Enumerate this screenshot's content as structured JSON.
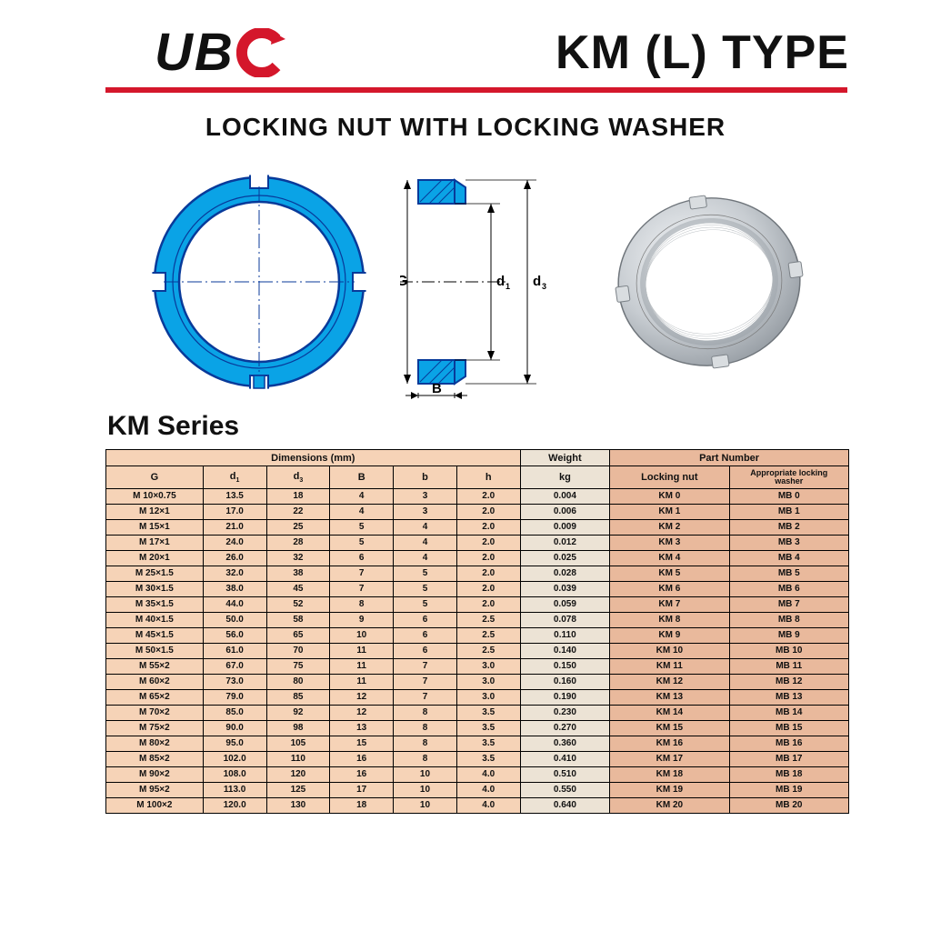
{
  "header": {
    "logo_text_1": "UB",
    "title": "KM (L) TYPE"
  },
  "subtitle": "LOCKING NUT WITH LOCKING WASHER",
  "series_label": "KM Series",
  "diagram": {
    "ring_fill": "#0aa3e6",
    "ring_stroke": "#083a9a",
    "label_G": "G",
    "label_d1": "d",
    "label_d1_sub": "1",
    "label_d3": "d",
    "label_d3_sub": "3",
    "label_B": "B"
  },
  "colors": {
    "red_bar": "#d4172b",
    "dim_bg": "#f6d3b7",
    "wt_bg": "#ece3d5",
    "pn_bg": "#e9b99c",
    "border": "#000000"
  },
  "table": {
    "group_headers": {
      "dimensions": "Dimensions  (mm)",
      "weight": "Weight",
      "part_number": "Part  Number"
    },
    "col_headers": {
      "G": "G",
      "d1": "d",
      "d1_sub": "1",
      "d3": "d",
      "d3_sub": "3",
      "B": "B",
      "b": "b",
      "h": "h",
      "kg": "kg",
      "locking_nut": "Locking nut",
      "washer_l1": "Appropriate locking",
      "washer_l2": "washer"
    },
    "rows": [
      {
        "G": "M 10×0.75",
        "d1": "13.5",
        "d3": "18",
        "B": "4",
        "b": "3",
        "h": "2.0",
        "wt": "0.004",
        "ln": "KM 0",
        "lw": "MB 0"
      },
      {
        "G": "M 12×1",
        "d1": "17.0",
        "d3": "22",
        "B": "4",
        "b": "3",
        "h": "2.0",
        "wt": "0.006",
        "ln": "KM 1",
        "lw": "MB 1"
      },
      {
        "G": "M 15×1",
        "d1": "21.0",
        "d3": "25",
        "B": "5",
        "b": "4",
        "h": "2.0",
        "wt": "0.009",
        "ln": "KM 2",
        "lw": "MB 2"
      },
      {
        "G": "M 17×1",
        "d1": "24.0",
        "d3": "28",
        "B": "5",
        "b": "4",
        "h": "2.0",
        "wt": "0.012",
        "ln": "KM 3",
        "lw": "MB 3"
      },
      {
        "G": "M 20×1",
        "d1": "26.0",
        "d3": "32",
        "B": "6",
        "b": "4",
        "h": "2.0",
        "wt": "0.025",
        "ln": "KM 4",
        "lw": "MB 4"
      },
      {
        "G": "M 25×1.5",
        "d1": "32.0",
        "d3": "38",
        "B": "7",
        "b": "5",
        "h": "2.0",
        "wt": "0.028",
        "ln": "KM 5",
        "lw": "MB 5"
      },
      {
        "G": "M 30×1.5",
        "d1": "38.0",
        "d3": "45",
        "B": "7",
        "b": "5",
        "h": "2.0",
        "wt": "0.039",
        "ln": "KM 6",
        "lw": "MB 6"
      },
      {
        "G": "M 35×1.5",
        "d1": "44.0",
        "d3": "52",
        "B": "8",
        "b": "5",
        "h": "2.0",
        "wt": "0.059",
        "ln": "KM 7",
        "lw": "MB 7"
      },
      {
        "G": "M 40×1.5",
        "d1": "50.0",
        "d3": "58",
        "B": "9",
        "b": "6",
        "h": "2.5",
        "wt": "0.078",
        "ln": "KM 8",
        "lw": "MB 8"
      },
      {
        "G": "M 45×1.5",
        "d1": "56.0",
        "d3": "65",
        "B": "10",
        "b": "6",
        "h": "2.5",
        "wt": "0.110",
        "ln": "KM 9",
        "lw": "MB 9"
      },
      {
        "G": "M 50×1.5",
        "d1": "61.0",
        "d3": "70",
        "B": "11",
        "b": "6",
        "h": "2.5",
        "wt": "0.140",
        "ln": "KM 10",
        "lw": "MB 10"
      },
      {
        "G": "M 55×2",
        "d1": "67.0",
        "d3": "75",
        "B": "11",
        "b": "7",
        "h": "3.0",
        "wt": "0.150",
        "ln": "KM 11",
        "lw": "MB 11"
      },
      {
        "G": "M 60×2",
        "d1": "73.0",
        "d3": "80",
        "B": "11",
        "b": "7",
        "h": "3.0",
        "wt": "0.160",
        "ln": "KM 12",
        "lw": "MB 12"
      },
      {
        "G": "M 65×2",
        "d1": "79.0",
        "d3": "85",
        "B": "12",
        "b": "7",
        "h": "3.0",
        "wt": "0.190",
        "ln": "KM 13",
        "lw": "MB 13"
      },
      {
        "G": "M 70×2",
        "d1": "85.0",
        "d3": "92",
        "B": "12",
        "b": "8",
        "h": "3.5",
        "wt": "0.230",
        "ln": "KM 14",
        "lw": "MB 14"
      },
      {
        "G": "M 75×2",
        "d1": "90.0",
        "d3": "98",
        "B": "13",
        "b": "8",
        "h": "3.5",
        "wt": "0.270",
        "ln": "KM 15",
        "lw": "MB 15"
      },
      {
        "G": "M 80×2",
        "d1": "95.0",
        "d3": "105",
        "B": "15",
        "b": "8",
        "h": "3.5",
        "wt": "0.360",
        "ln": "KM 16",
        "lw": "MB 16"
      },
      {
        "G": "M 85×2",
        "d1": "102.0",
        "d3": "110",
        "B": "16",
        "b": "8",
        "h": "3.5",
        "wt": "0.410",
        "ln": "KM 17",
        "lw": "MB 17"
      },
      {
        "G": "M 90×2",
        "d1": "108.0",
        "d3": "120",
        "B": "16",
        "b": "10",
        "h": "4.0",
        "wt": "0.510",
        "ln": "KM 18",
        "lw": "MB 18"
      },
      {
        "G": "M 95×2",
        "d1": "113.0",
        "d3": "125",
        "B": "17",
        "b": "10",
        "h": "4.0",
        "wt": "0.550",
        "ln": "KM 19",
        "lw": "MB 19"
      },
      {
        "G": "M 100×2",
        "d1": "120.0",
        "d3": "130",
        "B": "18",
        "b": "10",
        "h": "4.0",
        "wt": "0.640",
        "ln": "KM 20",
        "lw": "MB 20"
      }
    ]
  }
}
